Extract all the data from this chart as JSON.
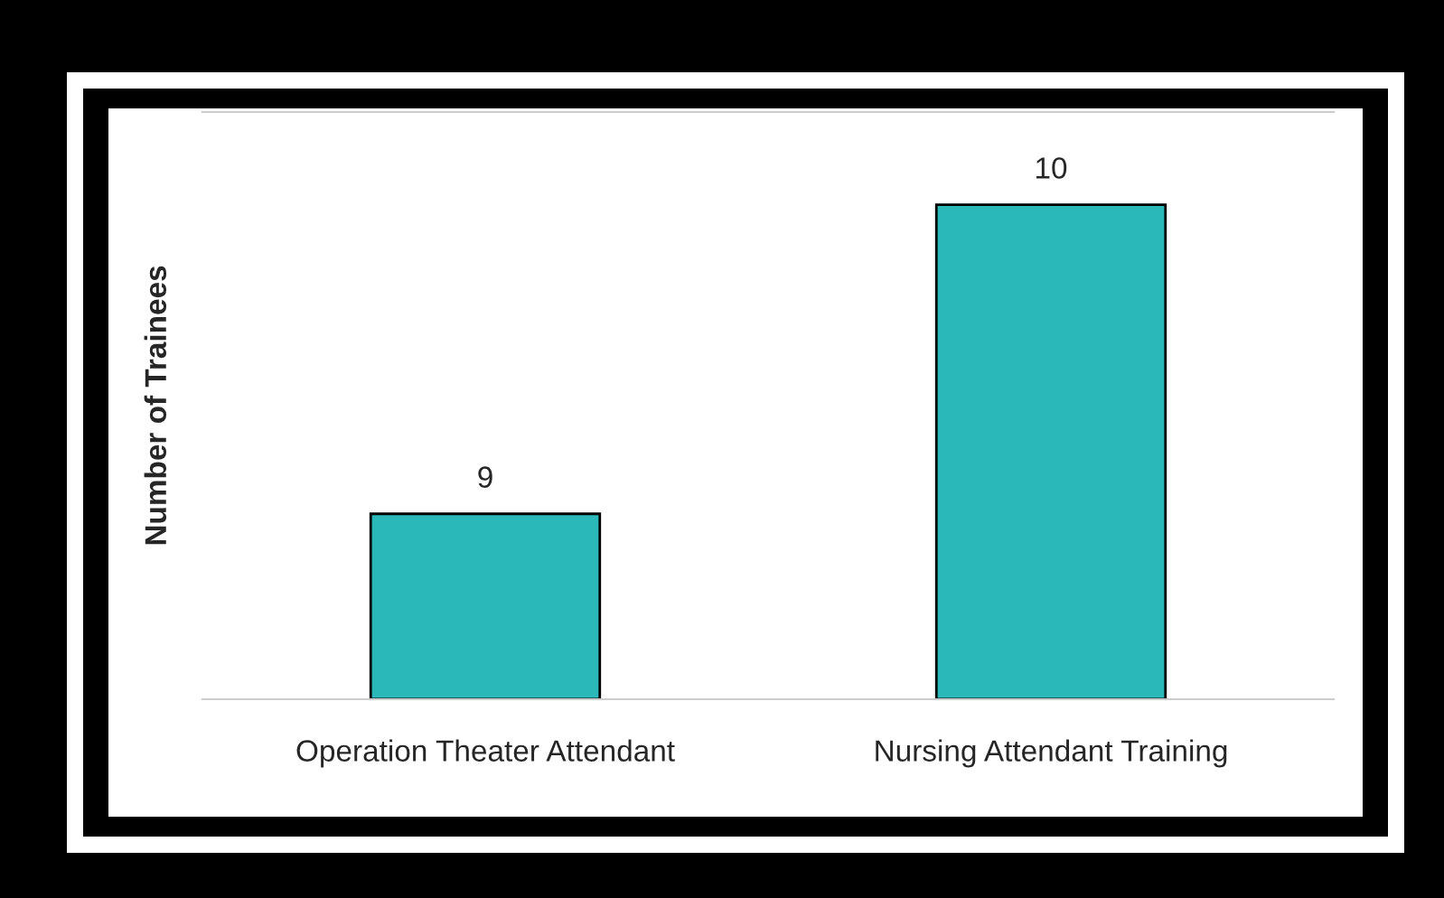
{
  "chart_data": {
    "type": "bar",
    "ylabel": "Number of Trainees",
    "categories": [
      "Operation Theater Attendant",
      "Nursing Attendant Training"
    ],
    "values": [
      9,
      10
    ],
    "color": "#2bb8b8",
    "ylim": [
      8.4,
      10.3
    ],
    "data_labels": true,
    "grid": false,
    "legend": false
  }
}
